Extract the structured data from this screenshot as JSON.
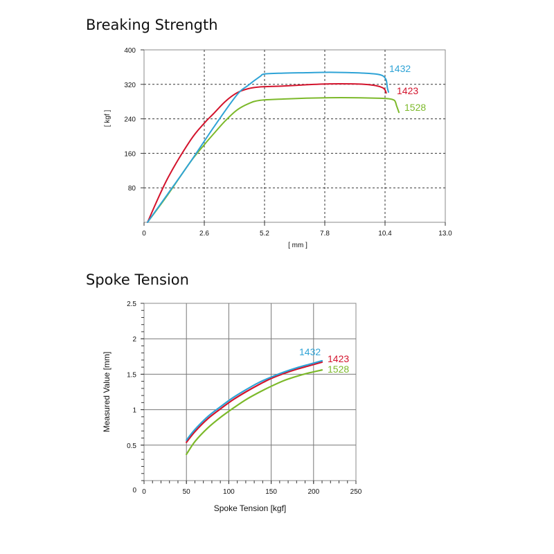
{
  "chart_data": [
    {
      "type": "line",
      "title": "Breaking Strength",
      "xlabel": "[ mm ]",
      "ylabel": "[ kgf ]",
      "xlim": [
        0,
        13.0
      ],
      "ylim": [
        0,
        400
      ],
      "xticks": [
        0,
        2.6,
        5.2,
        7.8,
        10.4,
        13.0
      ],
      "xtick_labels": [
        "0",
        "2.6",
        "5.2",
        "7.8",
        "10.4",
        "13.0"
      ],
      "yticks": [
        80,
        160,
        240,
        320,
        400
      ],
      "ytick_labels": [
        "80",
        "160",
        "240",
        "320",
        "400"
      ],
      "grid": true,
      "series": [
        {
          "name": "1432",
          "color": "#2ea3d6",
          "x": [
            0.15,
            1,
            2,
            3,
            4,
            4.5,
            5,
            5.2,
            6,
            7,
            8,
            9,
            9.5,
            10,
            10.3,
            10.45,
            10.5,
            10.55
          ],
          "y": [
            0,
            64,
            140,
            220,
            295,
            318,
            338,
            344,
            346,
            347,
            348,
            347,
            346,
            344,
            340,
            330,
            312,
            302
          ]
        },
        {
          "name": "1423",
          "color": "#d3132c",
          "x": [
            0.15,
            1,
            2,
            2.6,
            3,
            3.5,
            4,
            4.5,
            5,
            6,
            7,
            8,
            9,
            9.5,
            10,
            10.3,
            10.4,
            10.45
          ],
          "y": [
            0,
            100,
            190,
            230,
            252,
            280,
            300,
            310,
            314,
            316,
            319,
            321,
            321,
            320,
            317,
            312,
            307,
            300
          ]
        },
        {
          "name": "1528",
          "color": "#7cb92a",
          "x": [
            0.15,
            1,
            2,
            2.6,
            3,
            3.5,
            4,
            4.5,
            5,
            6,
            7,
            8,
            9,
            10,
            10.5,
            10.8,
            10.9,
            11.0
          ],
          "y": [
            0,
            62,
            140,
            180,
            205,
            235,
            260,
            275,
            283,
            286,
            288,
            289,
            289,
            288,
            287,
            283,
            270,
            255
          ]
        }
      ]
    },
    {
      "type": "line",
      "title": "Spoke Tension",
      "xlabel": "Spoke Tension [kgf]",
      "ylabel": "Measured Value [mm]",
      "xlim": [
        0,
        250
      ],
      "ylim": [
        0,
        2.5
      ],
      "xticks": [
        0,
        50,
        100,
        150,
        200,
        250
      ],
      "xtick_labels": [
        "0",
        "50",
        "100",
        "150",
        "200",
        "250"
      ],
      "yticks": [
        0.5,
        1,
        1.5,
        2,
        2.5
      ],
      "ytick_labels": [
        "0.5",
        "1",
        "1.5",
        "2",
        "2.5"
      ],
      "grid": true,
      "series": [
        {
          "name": "1432",
          "color": "#2ea3d6",
          "x": [
            50,
            60,
            75,
            90,
            105,
            120,
            135,
            150,
            165,
            180,
            195,
            210
          ],
          "y": [
            0.57,
            0.72,
            0.9,
            1.04,
            1.17,
            1.28,
            1.38,
            1.46,
            1.53,
            1.59,
            1.64,
            1.69
          ]
        },
        {
          "name": "1423",
          "color": "#d3132c",
          "x": [
            50,
            60,
            75,
            90,
            105,
            120,
            135,
            150,
            165,
            180,
            195,
            210
          ],
          "y": [
            0.54,
            0.69,
            0.87,
            1.01,
            1.14,
            1.25,
            1.35,
            1.44,
            1.51,
            1.57,
            1.62,
            1.67
          ]
        },
        {
          "name": "1528",
          "color": "#7cb92a",
          "x": [
            50,
            60,
            75,
            90,
            105,
            120,
            135,
            150,
            165,
            180,
            195,
            210
          ],
          "y": [
            0.37,
            0.55,
            0.74,
            0.89,
            1.02,
            1.14,
            1.24,
            1.33,
            1.41,
            1.47,
            1.52,
            1.56
          ]
        }
      ]
    }
  ]
}
